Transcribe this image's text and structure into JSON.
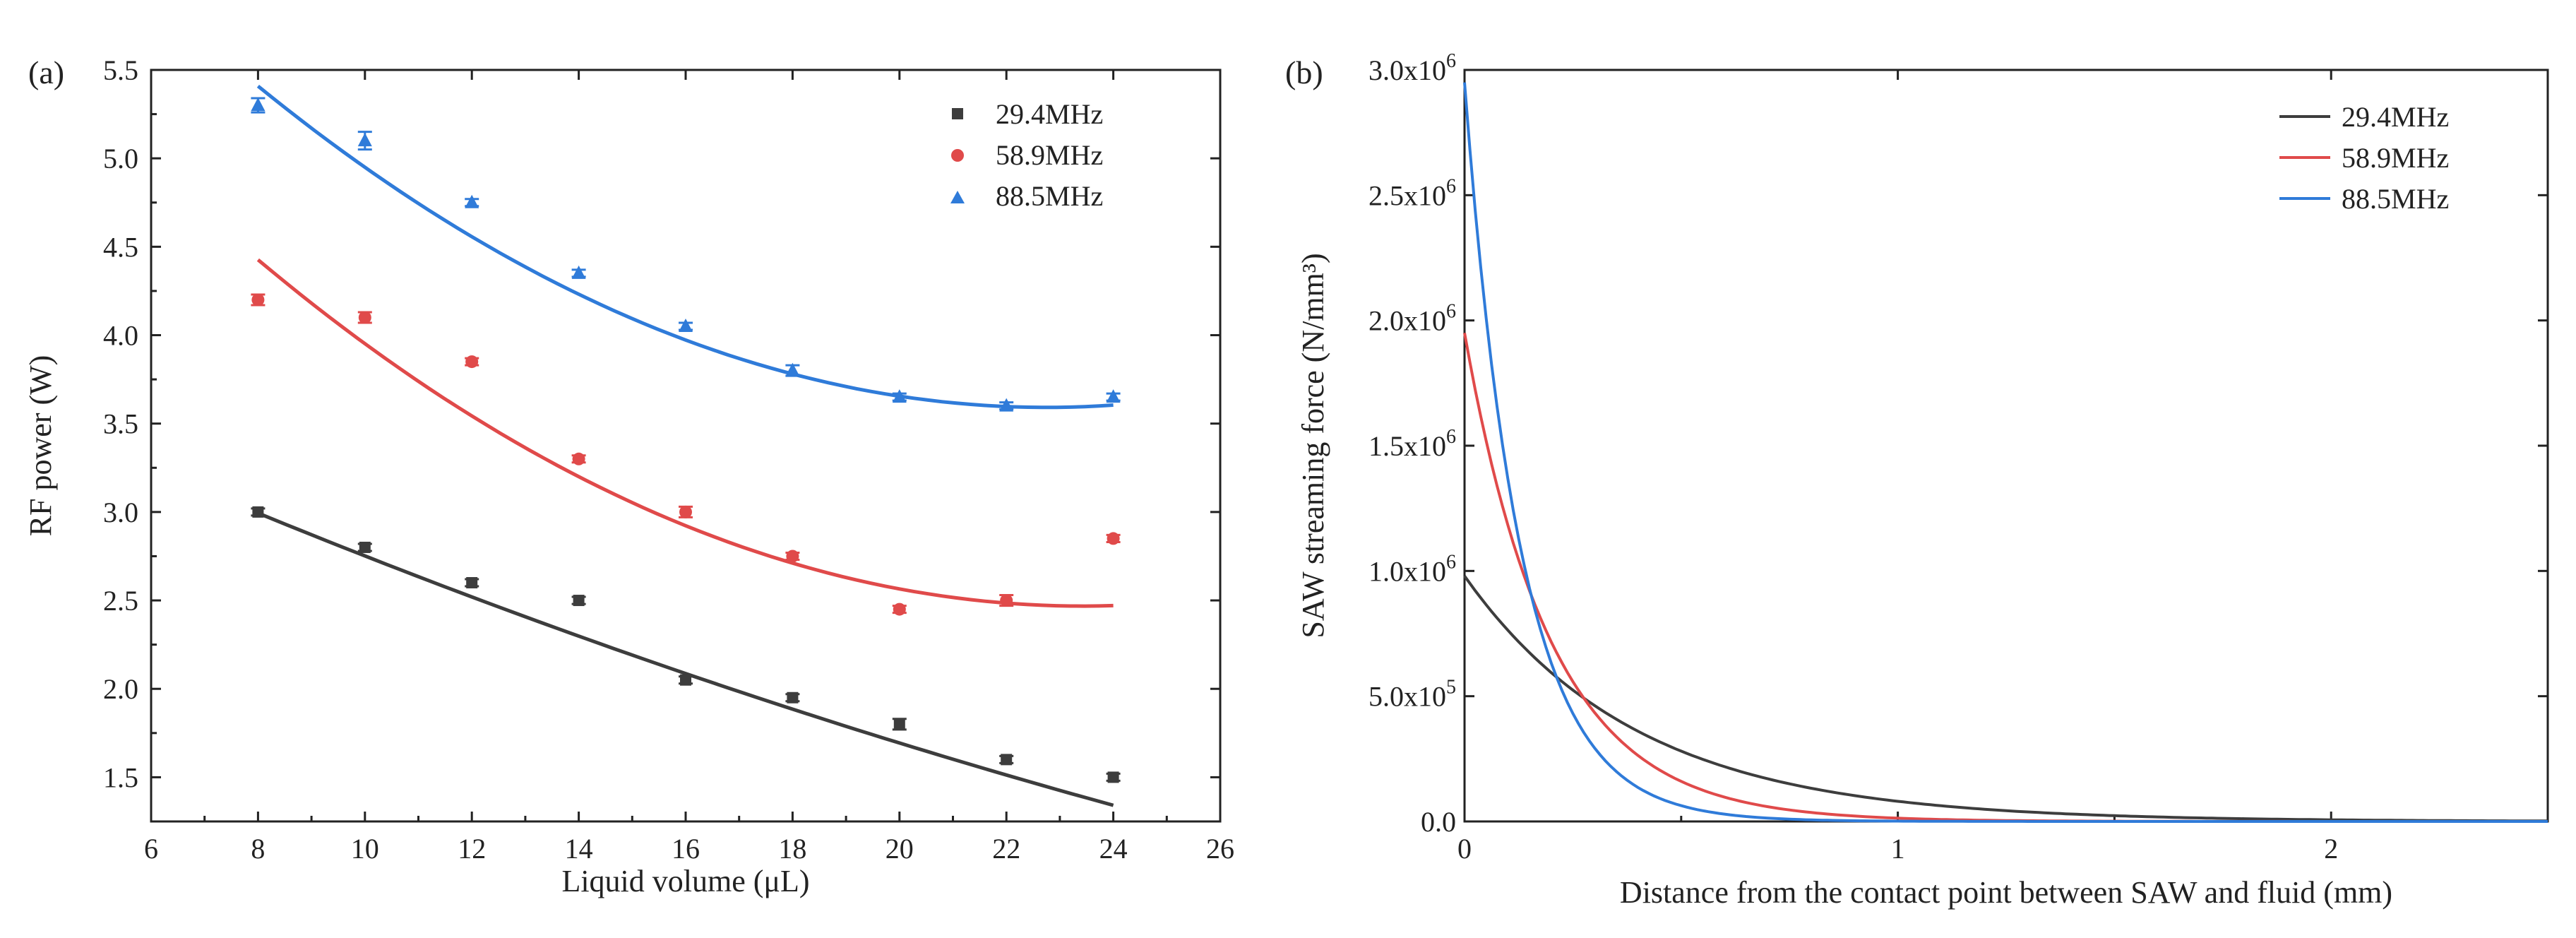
{
  "chart_data": [
    {
      "panel_label": "(a)",
      "type": "scatter",
      "xlabel": "Liquid volume (μL)",
      "ylabel": "RF power (W)",
      "xlim": [
        6,
        26
      ],
      "ylim": [
        1.25,
        5.5
      ],
      "xticks": [
        6,
        8,
        10,
        12,
        14,
        16,
        18,
        20,
        22,
        24,
        26
      ],
      "yticks": [
        1.5,
        2.0,
        2.5,
        3.0,
        3.5,
        4.0,
        4.5,
        5.0,
        5.5
      ],
      "xtick_labels": [
        "6",
        "8",
        "10",
        "12",
        "14",
        "16",
        "18",
        "20",
        "22",
        "24",
        "26"
      ],
      "ytick_labels": [
        "1.5",
        "2.0",
        "2.5",
        "3.0",
        "3.5",
        "4.0",
        "4.5",
        "5.0",
        "5.5"
      ],
      "legend_position": "top-right",
      "series": [
        {
          "name": "29.4MHz",
          "color": "#3d3d3d",
          "marker": "square",
          "x": [
            8,
            10,
            12,
            14,
            16,
            18,
            20,
            22,
            24
          ],
          "y": [
            3.0,
            2.8,
            2.6,
            2.5,
            2.05,
            1.95,
            1.8,
            1.6,
            1.5
          ],
          "error": [
            0.02,
            0.02,
            0.02,
            0.02,
            0.02,
            0.02,
            0.03,
            0.02,
            0.02
          ],
          "fit": {
            "x": [
              8,
              24
            ],
            "coeffs": [
              4.0625,
              -0.14375,
              0.001265625
            ]
          }
        },
        {
          "name": "58.9MHz",
          "color": "#e04a4a",
          "marker": "circle",
          "x": [
            8,
            10,
            12,
            14,
            16,
            18,
            20,
            22,
            24
          ],
          "y": [
            4.2,
            4.1,
            3.85,
            3.3,
            3.0,
            2.75,
            2.45,
            2.5,
            2.85
          ],
          "error": [
            0.03,
            0.03,
            0.02,
            0.02,
            0.03,
            0.02,
            0.02,
            0.03,
            0.02
          ],
          "fit": {
            "x": [
              8,
              24
            ],
            "coeffs": [
              6.9825,
              -0.38525,
              0.00821875
            ]
          }
        },
        {
          "name": "88.5MHz",
          "color": "#2f7bd9",
          "marker": "triangle",
          "x": [
            8,
            10,
            12,
            14,
            16,
            18,
            20,
            22,
            24
          ],
          "y": [
            5.3,
            5.1,
            4.75,
            4.35,
            4.05,
            3.8,
            3.65,
            3.6,
            3.65
          ],
          "error": [
            0.04,
            0.05,
            0.02,
            0.02,
            0.02,
            0.03,
            0.02,
            0.02,
            0.02
          ],
          "fit": {
            "x": [
              8,
              24
            ],
            "coeffs": [
              7.9125,
              -0.37975,
              0.00834375
            ]
          }
        }
      ]
    },
    {
      "panel_label": "(b)",
      "type": "line",
      "xlabel": "Distance from the contact point between SAW and fluid (mm)",
      "ylabel": "SAW streaming force (N/mm³)",
      "xlim": [
        0,
        2.5
      ],
      "ylim": [
        0,
        3000000
      ],
      "xticks": [
        0,
        1,
        2
      ],
      "yticks": [
        0,
        500000,
        1000000,
        1500000,
        2000000,
        2500000,
        3000000
      ],
      "xtick_labels": [
        "0",
        "1",
        "2"
      ],
      "ytick_labels": [
        "0.0",
        "5.0x10",
        "1.0x10",
        "1.5x10",
        "2.0x10",
        "2.5x10",
        "3.0x10"
      ],
      "ytick_exponents": [
        "",
        "5",
        "6",
        "6",
        "6",
        "6",
        "6"
      ],
      "legend_position": "top-right",
      "series": [
        {
          "name": "29.4MHz",
          "color": "#3d3d3d",
          "amplitude": 980000,
          "decay_length_mm": 0.4
        },
        {
          "name": "58.9MHz",
          "color": "#e04a4a",
          "amplitude": 1950000,
          "decay_length_mm": 0.2
        },
        {
          "name": "88.5MHz",
          "color": "#2f7bd9",
          "amplitude": 2950000,
          "decay_length_mm": 0.13
        }
      ]
    }
  ]
}
